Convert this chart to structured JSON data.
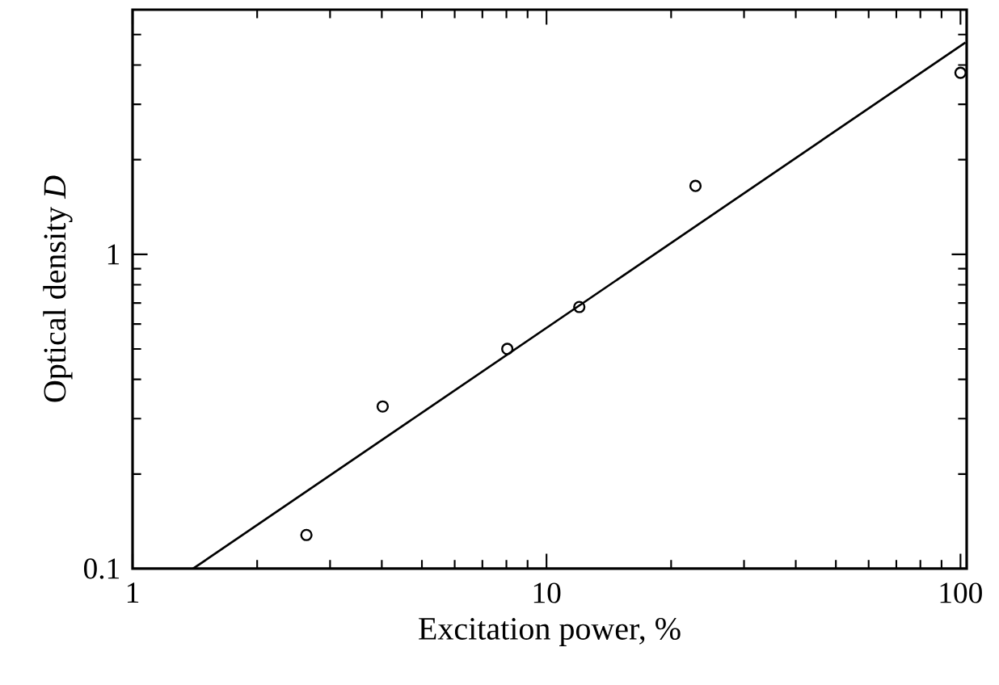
{
  "chart_data": {
    "type": "scatter",
    "xlabel": "Excitation power, %",
    "ylabel": "Optical density *D*",
    "log": "xy",
    "xlim": [
      1,
      103.5
    ],
    "ylim": [
      0.1,
      6
    ],
    "xticks": [
      1,
      {
        "value": 2,
        "label": null
      },
      {
        "value": 3,
        "label": null
      },
      {
        "value": 4,
        "label": null
      },
      {
        "value": 5,
        "label": null
      },
      {
        "value": 6,
        "label": null
      },
      {
        "value": 7,
        "label": null
      },
      {
        "value": 8,
        "label": null
      },
      {
        "value": 9,
        "label": null
      },
      10,
      {
        "value": 20,
        "label": null
      },
      {
        "value": 30,
        "label": null
      },
      {
        "value": 40,
        "label": null
      },
      {
        "value": 50,
        "label": null
      },
      {
        "value": 60,
        "label": null
      },
      {
        "value": 70,
        "label": null
      },
      {
        "value": 80,
        "label": null
      },
      {
        "value": 90,
        "label": null
      },
      100
    ],
    "yticks": [
      0.1,
      {
        "value": 0.2,
        "label": null
      },
      {
        "value": 0.3,
        "label": null
      },
      {
        "value": 0.4,
        "label": null
      },
      {
        "value": 0.5,
        "label": null
      },
      {
        "value": 0.6,
        "label": null
      },
      {
        "value": 0.7,
        "label": null
      },
      {
        "value": 0.8,
        "label": null
      },
      {
        "value": 0.9,
        "label": null
      },
      1,
      {
        "value": 2,
        "label": null
      },
      {
        "value": 3,
        "label": null
      },
      {
        "value": 4,
        "label": null
      },
      {
        "value": 5,
        "label": null
      }
    ],
    "series": [
      {
        "marker": "circle",
        "color": "#000000",
        "x": [
          2.63,
          4.02,
          8.04,
          12.0,
          22.9,
          100
        ],
        "values": [
          0.128,
          0.328,
          0.5,
          0.68,
          1.65,
          3.78
        ]
      },
      {
        "type": "line",
        "marker": "none",
        "color": "#000000",
        "line_style": "solid",
        "x": [
          1.4,
          102.8
        ],
        "values": [
          0.1,
          4.72
        ]
      }
    ]
  }
}
